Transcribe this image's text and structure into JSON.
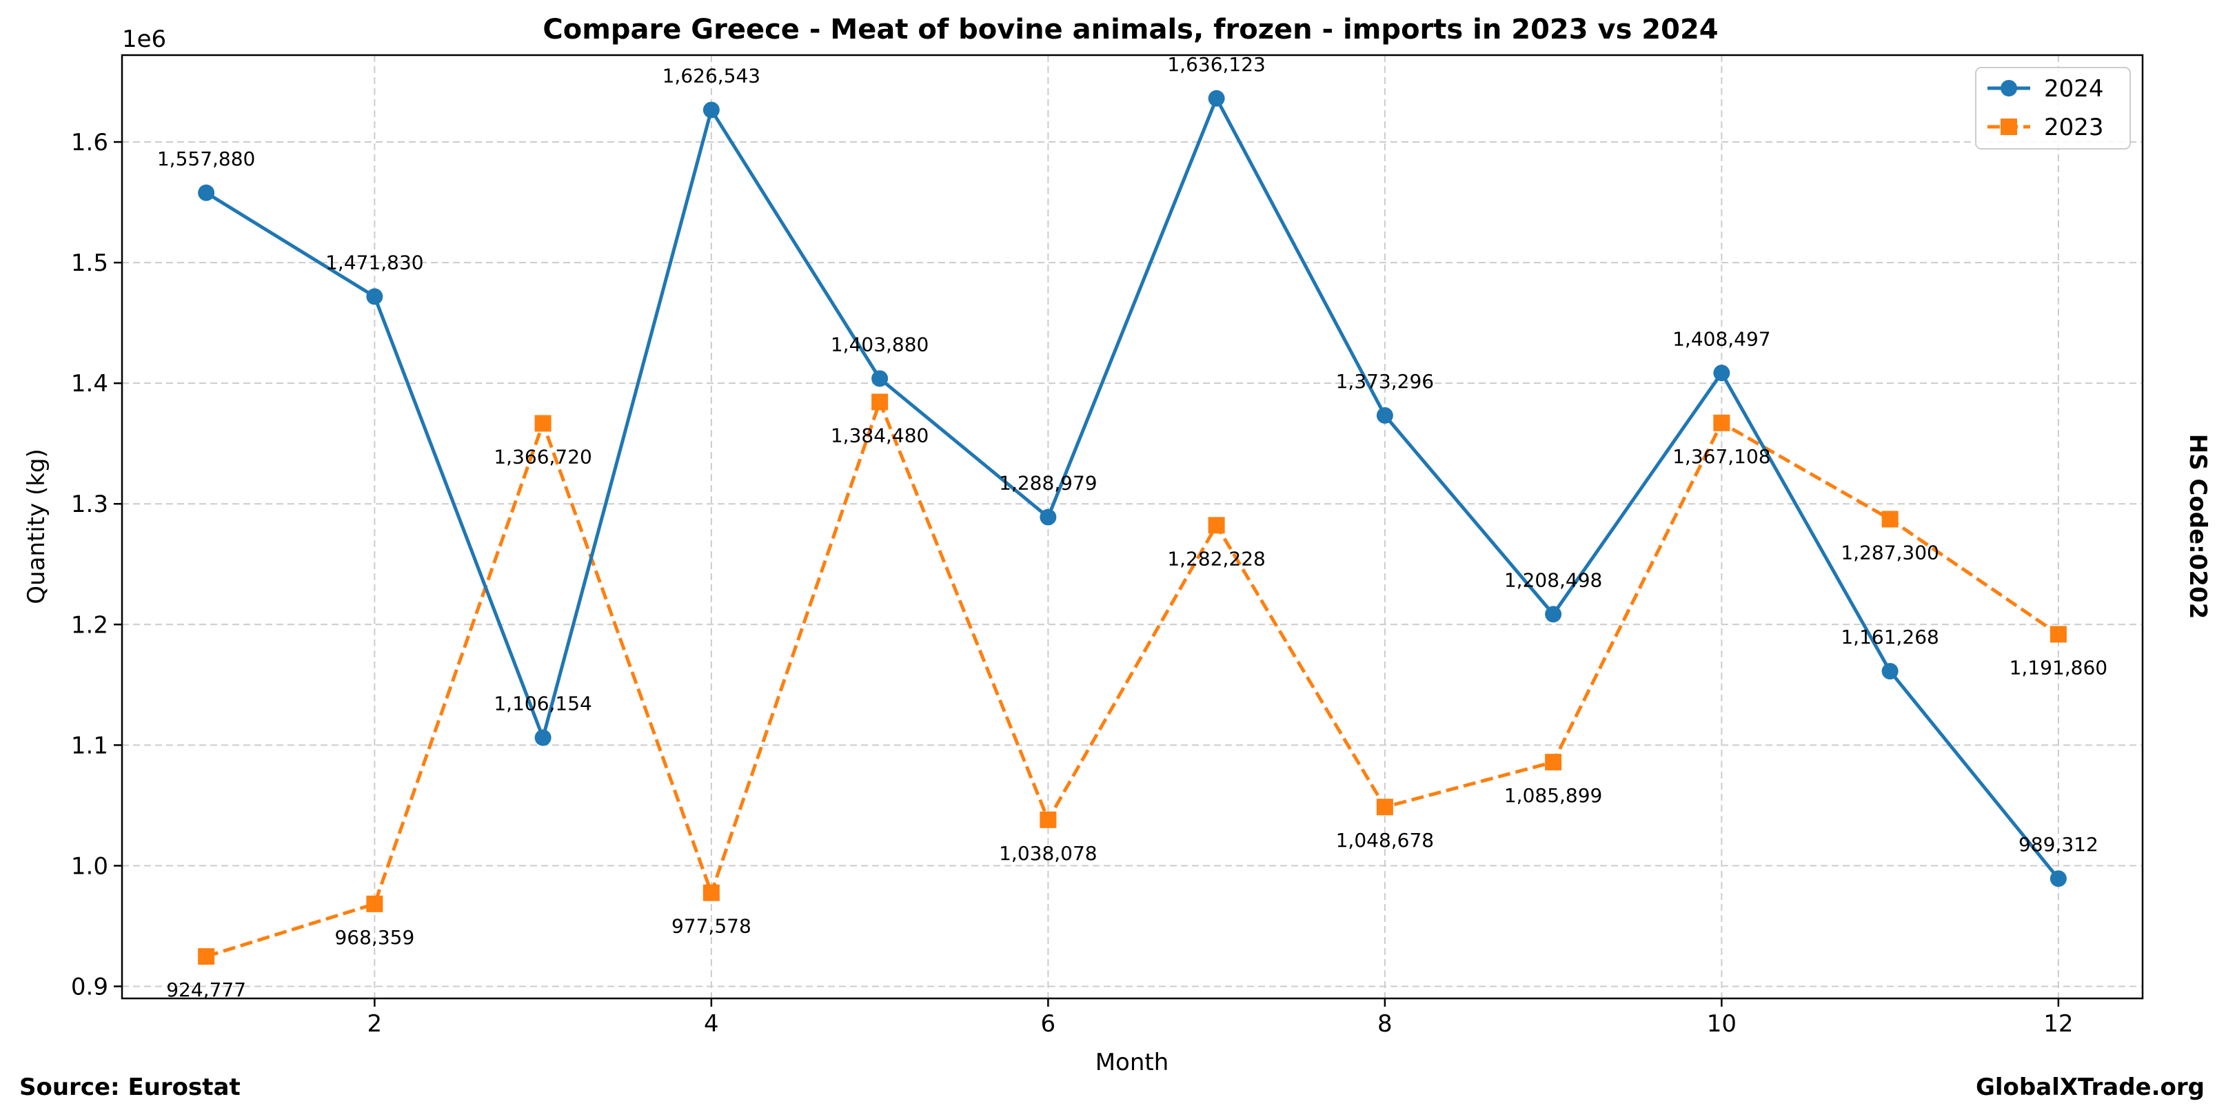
{
  "chart_data": {
    "type": "line",
    "title": "Compare Greece - Meat of bovine animals, frozen - imports in 2023 vs 2024",
    "xlabel": "Month",
    "ylabel": "Quantity (kg)",
    "y_offset_label": "1e6",
    "right_label": "HS Code:0202",
    "source": "Source: Eurostat",
    "brand": "GlobalXTrade.org",
    "xlim": [
      0.5,
      12.5
    ],
    "ylim": [
      890000,
      1672000
    ],
    "x_ticks": [
      2,
      4,
      6,
      8,
      10,
      12
    ],
    "x_tick_labels": [
      "2",
      "4",
      "6",
      "8",
      "10",
      "12"
    ],
    "y_ticks": [
      900000,
      1000000,
      1100000,
      1200000,
      1300000,
      1400000,
      1500000,
      1600000
    ],
    "y_tick_labels": [
      "0.9",
      "1.0",
      "1.1",
      "1.2",
      "1.3",
      "1.4",
      "1.5",
      "1.6"
    ],
    "grid": true,
    "legend_position": "top-right",
    "x": [
      1,
      2,
      3,
      4,
      5,
      6,
      7,
      8,
      9,
      10,
      11,
      12
    ],
    "series": [
      {
        "name": "2024",
        "color": "#1f77b4",
        "marker": "circle",
        "linestyle": "solid",
        "label_position": "above",
        "values": [
          1557880,
          1471830,
          1106154,
          1626543,
          1403880,
          1288979,
          1636123,
          1373296,
          1208498,
          1408497,
          1161268,
          989312
        ],
        "labels": [
          "1,557,880",
          "1,471,830",
          "1,106,154",
          "1,626,543",
          "1,403,880",
          "1,288,979",
          "1,636,123",
          "1,373,296",
          "1,208,498",
          "1,408,497",
          "1,161,268",
          "989,312"
        ]
      },
      {
        "name": "2023",
        "color": "#ff7f0e",
        "marker": "square",
        "linestyle": "dashed",
        "label_position": "below",
        "values": [
          924777,
          968359,
          1366720,
          977578,
          1384480,
          1038078,
          1282228,
          1048678,
          1085899,
          1367108,
          1287300,
          1191860
        ],
        "labels": [
          "924,777",
          "968,359",
          "1,366,720",
          "977,578",
          "1,384,480",
          "1,038,078",
          "1,282,228",
          "1,048,678",
          "1,085,899",
          "1,367,108",
          "1,287,300",
          "1,191,860"
        ]
      }
    ]
  }
}
